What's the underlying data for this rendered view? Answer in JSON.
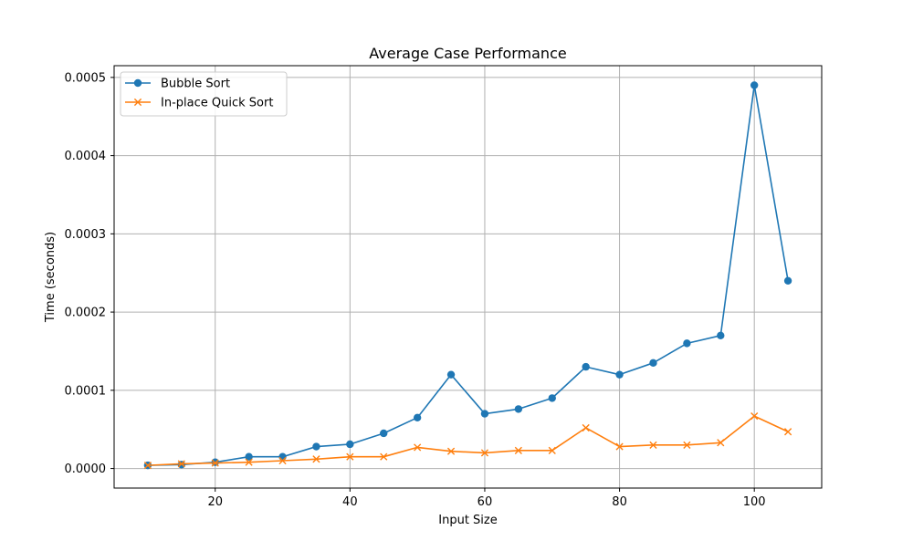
{
  "chart_data": {
    "type": "line",
    "title": "Average Case Performance",
    "xlabel": "Input Size",
    "ylabel": "Time (seconds)",
    "xlim": [
      5,
      110
    ],
    "ylim": [
      -2.5e-05,
      0.000515
    ],
    "xticks": [
      20,
      40,
      60,
      80,
      100
    ],
    "xtick_labels": [
      "20",
      "40",
      "60",
      "80",
      "100"
    ],
    "yticks": [
      0,
      0.0001,
      0.0002,
      0.0003,
      0.0004,
      0.0005
    ],
    "ytick_labels": [
      "0.0000",
      "0.0001",
      "0.0002",
      "0.0003",
      "0.0004",
      "0.0005"
    ],
    "grid": true,
    "legend_position": "top-left",
    "x": [
      10,
      15,
      20,
      25,
      30,
      35,
      40,
      45,
      50,
      55,
      60,
      65,
      70,
      75,
      80,
      85,
      90,
      95,
      100,
      105
    ],
    "series": [
      {
        "name": "Bubble Sort",
        "color": "#1f77b4",
        "marker": "circle",
        "values": [
          4e-06,
          5e-06,
          8e-06,
          1.5e-05,
          1.5e-05,
          2.8e-05,
          3.1e-05,
          4.5e-05,
          6.5e-05,
          0.00012,
          7e-05,
          7.6e-05,
          9e-05,
          0.00013,
          0.00012,
          0.000135,
          0.00016,
          0.00017,
          0.00049,
          0.00024
        ]
      },
      {
        "name": "In-place Quick Sort",
        "color": "#ff7f0e",
        "marker": "x",
        "values": [
          4e-06,
          6e-06,
          7e-06,
          8e-06,
          1e-05,
          1.2e-05,
          1.5e-05,
          1.5e-05,
          2.7e-05,
          2.2e-05,
          2e-05,
          2.3e-05,
          2.3e-05,
          5.2e-05,
          2.8e-05,
          3e-05,
          3e-05,
          3.3e-05,
          6.7e-05,
          4.7e-05
        ]
      }
    ]
  }
}
